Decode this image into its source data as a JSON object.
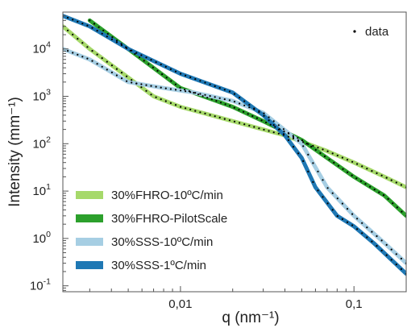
{
  "chart_data": {
    "type": "line",
    "xlabel": "q (nm⁻¹)",
    "ylabel": "Intensity (mm⁻¹)",
    "x_scale": "log",
    "y_scale": "log",
    "xlim": [
      0.0021,
      0.2
    ],
    "ylim": [
      0.075,
      60000
    ],
    "x_ticks": [
      {
        "value": 0.01,
        "label": "0,01"
      },
      {
        "value": 0.1,
        "label": "0,1"
      }
    ],
    "y_ticks": [
      {
        "value": 0.1,
        "base": "10",
        "exp": "-1"
      },
      {
        "value": 1,
        "base": "10",
        "exp": "0"
      },
      {
        "value": 10,
        "base": "10",
        "exp": "1"
      },
      {
        "value": 100,
        "base": "10",
        "exp": "2"
      },
      {
        "value": 1000,
        "base": "10",
        "exp": "3"
      },
      {
        "value": 10000,
        "base": "10",
        "exp": "4"
      }
    ],
    "grid": false,
    "legend_position": "bottom-left",
    "data_legend": {
      "label": "data",
      "position": "top-right",
      "color": "#000000"
    },
    "series": [
      {
        "name": "30%FHRO-10ºC/min",
        "color": "#a6d96a",
        "points": [
          [
            0.0021,
            30000
          ],
          [
            0.003,
            10000
          ],
          [
            0.005,
            2500
          ],
          [
            0.007,
            1000
          ],
          [
            0.01,
            600
          ],
          [
            0.02,
            300
          ],
          [
            0.04,
            150
          ],
          [
            0.07,
            70
          ],
          [
            0.1,
            40
          ],
          [
            0.15,
            20
          ],
          [
            0.2,
            12
          ]
        ]
      },
      {
        "name": "30%FHRO-PilotScale",
        "color": "#2ca02c",
        "points": [
          [
            0.003,
            40000
          ],
          [
            0.005,
            10000
          ],
          [
            0.01,
            1500
          ],
          [
            0.02,
            600
          ],
          [
            0.03,
            300
          ],
          [
            0.05,
            120
          ],
          [
            0.07,
            50
          ],
          [
            0.1,
            20
          ],
          [
            0.15,
            8
          ],
          [
            0.2,
            3
          ]
        ]
      },
      {
        "name": "30%SSS-10ºC/min",
        "color": "#a6cee3",
        "points": [
          [
            0.0021,
            10000
          ],
          [
            0.003,
            6000
          ],
          [
            0.005,
            2000
          ],
          [
            0.008,
            1500
          ],
          [
            0.012,
            1200
          ],
          [
            0.02,
            800
          ],
          [
            0.03,
            450
          ],
          [
            0.05,
            100
          ],
          [
            0.07,
            12
          ],
          [
            0.1,
            3
          ],
          [
            0.15,
            0.8
          ],
          [
            0.2,
            0.3
          ]
        ]
      },
      {
        "name": "30%SSS-1ºC/min",
        "color": "#1f78b4",
        "points": [
          [
            0.0021,
            50000
          ],
          [
            0.003,
            30000
          ],
          [
            0.005,
            10000
          ],
          [
            0.01,
            3000
          ],
          [
            0.02,
            1200
          ],
          [
            0.03,
            400
          ],
          [
            0.04,
            150
          ],
          [
            0.05,
            50
          ],
          [
            0.06,
            12
          ],
          [
            0.08,
            3
          ],
          [
            0.1,
            1.8
          ],
          [
            0.13,
            0.8
          ],
          [
            0.2,
            0.18
          ]
        ]
      }
    ]
  }
}
